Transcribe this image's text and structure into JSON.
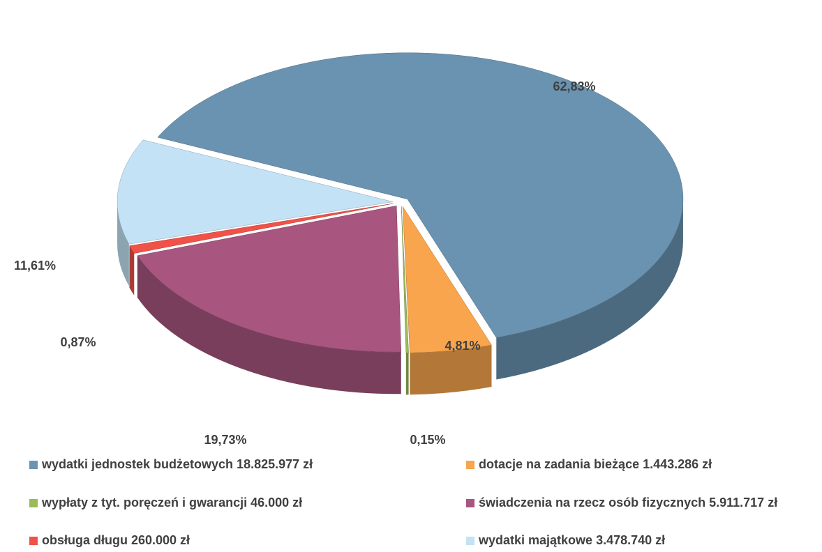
{
  "chart_data": {
    "type": "pie",
    "categories": [
      "wydatki jednostek budżetowych 18.825.977 zł",
      "dotacje na zadania bieżące 1.443.286 zł",
      "wypłaty z tyt. poręczeń i gwarancji 46.000 zł",
      "świadczenia na rzecz osób fizycznych 5.911.717 zł",
      "obsługa długu 260.000 zł",
      "wydatki majątkowe 3.478.740 zł"
    ],
    "values": [
      62.83,
      4.81,
      0.15,
      19.73,
      0.87,
      11.61
    ],
    "value_labels": [
      "62,83%",
      "4,81%",
      "0,15%",
      "19,73%",
      "0,87%",
      "11,61%"
    ],
    "colors": [
      "#6a93b1",
      "#f8a54e",
      "#9bbb59",
      "#a8567f",
      "#f0524a",
      "#c3e2f5"
    ],
    "legend": "bottom"
  }
}
